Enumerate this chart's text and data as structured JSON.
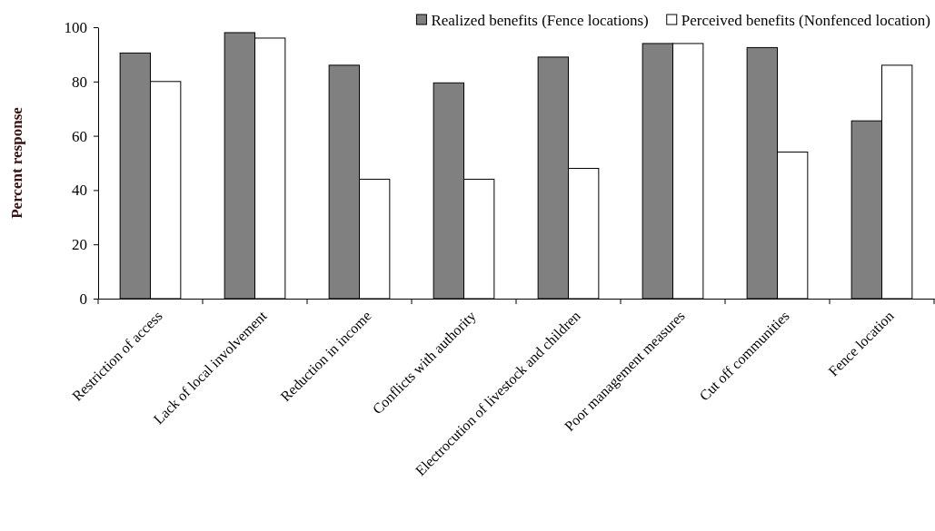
{
  "chart_data": {
    "type": "bar",
    "ylabel": "Percent response",
    "categories": [
      "Restriction of access",
      "Lack of local involvement",
      "Reduction in income",
      "Conflicts with authority",
      "Electrocution of livestock and children",
      "Poor management measures",
      "Cut off communities",
      "Fence location"
    ],
    "series": [
      {
        "name": "Realized benefits (Fence locations)",
        "color": "#808080",
        "values": [
          90.5,
          98,
          86,
          79.5,
          89,
          94,
          92.5,
          65.5
        ]
      },
      {
        "name": "Perceived benefits (Nonfenced location)",
        "color": "#ffffff",
        "values": [
          80,
          96,
          44,
          44,
          48,
          94,
          54,
          86
        ]
      }
    ],
    "ylim": [
      0,
      100
    ],
    "yticks": [
      0,
      20,
      40,
      60,
      80,
      100
    ],
    "grid": false,
    "legend": "top right"
  }
}
